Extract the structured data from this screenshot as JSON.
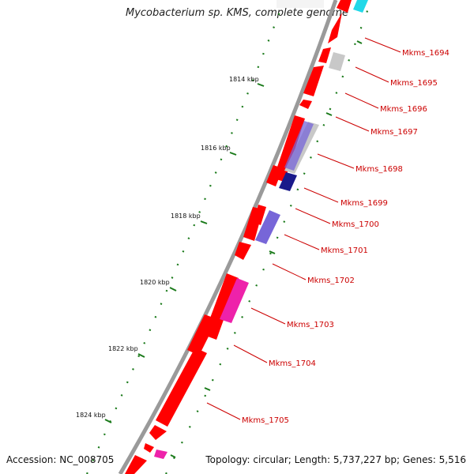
{
  "header": {
    "title": "Mycobacterium sp. KMS, complete genome"
  },
  "footer": {
    "accession": "Accession: NC_008705",
    "summary": "Topology: circular; Length: 5,737,227 bp; Genes: 5,516"
  },
  "colors": {
    "gene": "#ff0000",
    "track": "#9a9a9a",
    "tick": "#1a7a1a",
    "label": "#cc0000",
    "cog_gray": "#c8c8c8",
    "cog_navy": "#1a1a8a",
    "cog_purple": "#7766d8",
    "cog_magenta": "#ee22aa",
    "cog_cyan": "#22d8e8"
  },
  "scale": {
    "labels": [
      "1814 kbp",
      "1816 kbp",
      "1818 kbp",
      "1820 kbp",
      "1822 kbp",
      "1824 kbp"
    ]
  },
  "genes": [
    {
      "id": "Mkms_1694"
    },
    {
      "id": "Mkms_1695"
    },
    {
      "id": "Mkms_1696"
    },
    {
      "id": "Mkms_1697"
    },
    {
      "id": "Mkms_1698"
    },
    {
      "id": "Mkms_1699"
    },
    {
      "id": "Mkms_1700"
    },
    {
      "id": "Mkms_1701"
    },
    {
      "id": "Mkms_1702"
    },
    {
      "id": "Mkms_1703"
    },
    {
      "id": "Mkms_1704"
    },
    {
      "id": "Mkms_1705"
    }
  ]
}
